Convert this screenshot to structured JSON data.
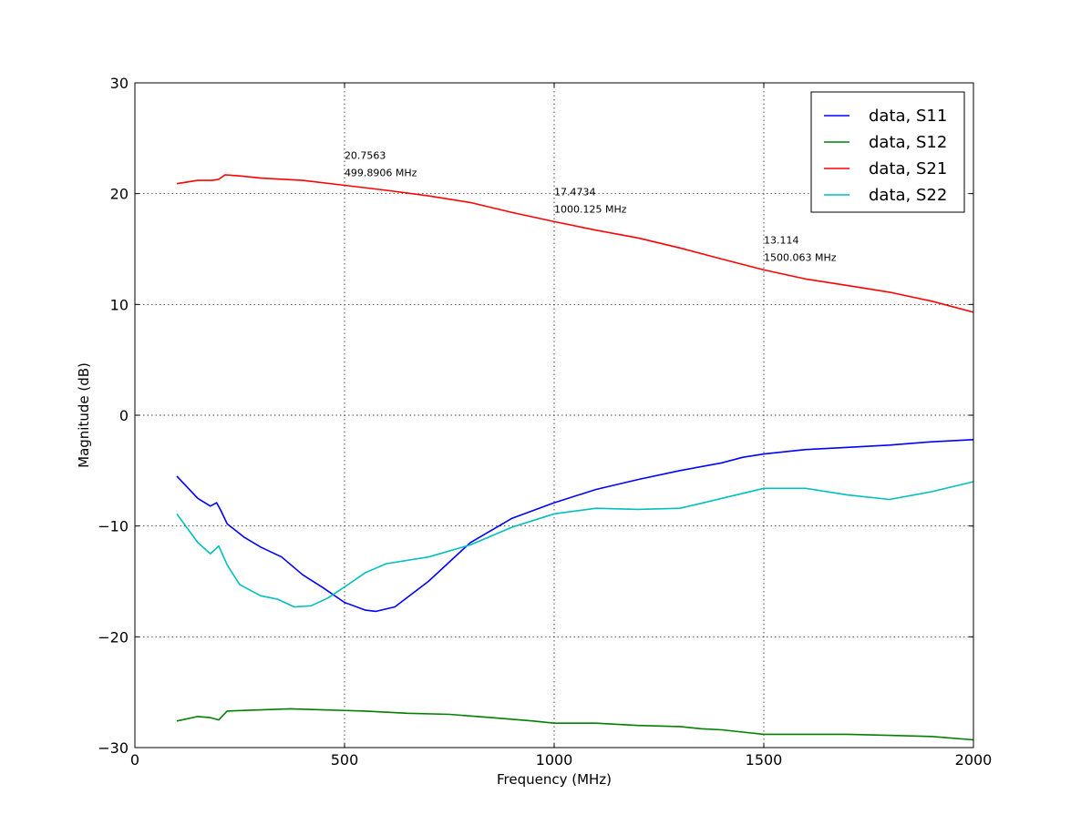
{
  "chart_data": {
    "type": "line",
    "xlabel": "Frequency (MHz)",
    "ylabel": "Magnitude (dB)",
    "xlim": [
      0,
      2000
    ],
    "ylim": [
      -30,
      30
    ],
    "xticks": [
      0,
      500,
      1000,
      1500,
      2000
    ],
    "xtick_labels": [
      "0",
      "500",
      "1000",
      "1500",
      "2000"
    ],
    "yticks": [
      -30,
      -20,
      -10,
      0,
      10,
      20,
      30
    ],
    "ytick_labels": [
      "−30",
      "−20",
      "−10",
      "0",
      "10",
      "20",
      "30"
    ],
    "grid": true,
    "legend_position": "top-right",
    "series": [
      {
        "name": "data, S11",
        "color": "#0000ff",
        "x": [
          100,
          150,
          180,
          195,
          205,
          220,
          260,
          300,
          350,
          400,
          450,
          500,
          550,
          575,
          620,
          700,
          800,
          900,
          1000,
          1100,
          1200,
          1300,
          1400,
          1450,
          1500,
          1600,
          1700,
          1800,
          1900,
          2000
        ],
        "y": [
          -5.5,
          -7.5,
          -8.2,
          -7.9,
          -8.6,
          -9.8,
          -11.0,
          -11.9,
          -12.8,
          -14.4,
          -15.6,
          -16.9,
          -17.6,
          -17.7,
          -17.3,
          -15.0,
          -11.5,
          -9.3,
          -7.9,
          -6.7,
          -5.8,
          -5.0,
          -4.3,
          -3.8,
          -3.5,
          -3.1,
          -2.9,
          -2.7,
          -2.4,
          -2.2
        ]
      },
      {
        "name": "data, S12",
        "color": "#008000",
        "x": [
          100,
          150,
          180,
          200,
          220,
          300,
          370,
          450,
          550,
          650,
          750,
          850,
          950,
          1000,
          1100,
          1200,
          1300,
          1350,
          1400,
          1450,
          1500,
          1600,
          1700,
          1800,
          1900,
          2000
        ],
        "y": [
          -27.6,
          -27.2,
          -27.3,
          -27.5,
          -26.7,
          -26.6,
          -26.5,
          -26.6,
          -26.7,
          -26.9,
          -27.0,
          -27.3,
          -27.6,
          -27.8,
          -27.8,
          -28.0,
          -28.1,
          -28.3,
          -28.4,
          -28.6,
          -28.8,
          -28.8,
          -28.8,
          -28.9,
          -29.0,
          -29.3
        ]
      },
      {
        "name": "data, S21",
        "color": "#ff0000",
        "x": [
          100,
          150,
          185,
          200,
          215,
          250,
          300,
          400,
          499.8906,
          600,
          700,
          800,
          900,
          1000.125,
          1100,
          1200,
          1300,
          1400,
          1500.063,
          1600,
          1700,
          1800,
          1900,
          2000
        ],
        "y": [
          20.9,
          21.2,
          21.2,
          21.3,
          21.7,
          21.6,
          21.4,
          21.2,
          20.7563,
          20.3,
          19.8,
          19.2,
          18.3,
          17.4734,
          16.7,
          16.0,
          15.1,
          14.1,
          13.114,
          12.3,
          11.7,
          11.1,
          10.3,
          9.3
        ]
      },
      {
        "name": "data, S22",
        "color": "#00bfbf",
        "x": [
          100,
          150,
          180,
          200,
          220,
          250,
          300,
          340,
          380,
          420,
          460,
          500,
          550,
          600,
          700,
          800,
          900,
          1000,
          1100,
          1200,
          1300,
          1400,
          1500,
          1600,
          1700,
          1800,
          1900,
          2000
        ],
        "y": [
          -8.9,
          -11.5,
          -12.5,
          -11.8,
          -13.5,
          -15.3,
          -16.3,
          -16.6,
          -17.3,
          -17.2,
          -16.5,
          -15.5,
          -14.2,
          -13.4,
          -12.8,
          -11.7,
          -10.1,
          -8.9,
          -8.4,
          -8.5,
          -8.4,
          -7.5,
          -6.6,
          -6.6,
          -7.2,
          -7.6,
          -6.9,
          -6.0
        ]
      }
    ],
    "annotations": [
      {
        "x": 499.8906,
        "y": 20.7563,
        "value_text": "20.7563",
        "freq_text": "499.8906 MHz"
      },
      {
        "x": 1000.125,
        "y": 17.4734,
        "value_text": "17.4734",
        "freq_text": "1000.125 MHz"
      },
      {
        "x": 1500.063,
        "y": 13.114,
        "value_text": "13.114",
        "freq_text": "1500.063 MHz"
      }
    ]
  }
}
